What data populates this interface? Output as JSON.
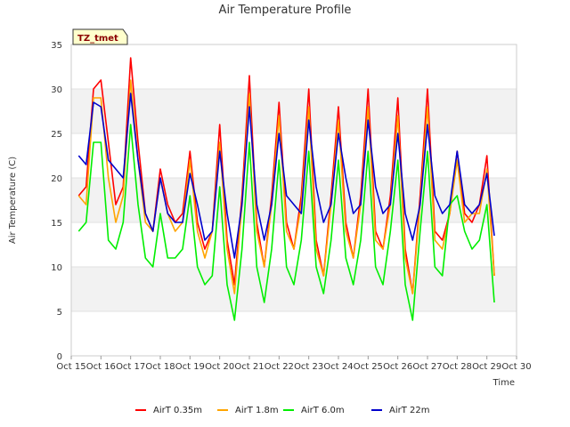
{
  "chart_data": {
    "type": "line",
    "title": "Air Temperature Profile",
    "xlabel": "Time",
    "ylabel": "Air Temperature (C)",
    "site_label": "TZ_tmet",
    "xlim": [
      15,
      30
    ],
    "ylim": [
      0,
      35
    ],
    "x_ticks": [
      15,
      16,
      17,
      18,
      19,
      20,
      21,
      22,
      23,
      24,
      25,
      26,
      27,
      28,
      29,
      30
    ],
    "x_tick_labels": [
      "Oct 15",
      "Oct 16",
      "Oct 17",
      "Oct 18",
      "Oct 19",
      "Oct 20",
      "Oct 21",
      "Oct 22",
      "Oct 23",
      "Oct 24",
      "Oct 25",
      "Oct 26",
      "Oct 27",
      "Oct 28",
      "Oct 29",
      "Oct 30"
    ],
    "y_ticks": [
      0,
      5,
      10,
      15,
      20,
      25,
      30,
      35
    ],
    "y_tick_labels": [
      "0",
      "5",
      "10",
      "15",
      "20",
      "25",
      "30",
      "35"
    ],
    "grid": true,
    "legend_position": "bottom",
    "series": [
      {
        "name": "AirT 0.35m",
        "color": "#ff0000",
        "x": [
          15.25,
          15.5,
          15.75,
          16.0,
          16.25,
          16.5,
          16.75,
          17.0,
          17.25,
          17.5,
          17.75,
          18.0,
          18.25,
          18.5,
          18.75,
          19.0,
          19.25,
          19.5,
          19.75,
          20.0,
          20.25,
          20.5,
          20.75,
          21.0,
          21.25,
          21.5,
          21.75,
          22.0,
          22.25,
          22.5,
          22.75,
          23.0,
          23.25,
          23.5,
          23.75,
          24.0,
          24.25,
          24.5,
          24.75,
          25.0,
          25.25,
          25.5,
          25.75,
          26.0,
          26.25,
          26.5,
          26.75,
          27.0,
          27.25,
          27.5,
          27.75,
          28.0,
          28.25,
          28.5,
          28.75,
          29.0,
          29.25
        ],
        "values": [
          18,
          19,
          30,
          31,
          24,
          17,
          19,
          33.5,
          24,
          16,
          14,
          21,
          17,
          15,
          16,
          23,
          15,
          12,
          14,
          26,
          13,
          8,
          18,
          31.5,
          15,
          10,
          18,
          28.5,
          15,
          12,
          18,
          30,
          13,
          9,
          18,
          28,
          15,
          11,
          18,
          30,
          14,
          12,
          18,
          29,
          12,
          7,
          18,
          30,
          14,
          13,
          16,
          23,
          16,
          15,
          17,
          22.5,
          9
        ]
      },
      {
        "name": "AirT 1.8m",
        "color": "#ffa500",
        "x": [
          15.25,
          15.5,
          15.75,
          16.0,
          16.25,
          16.5,
          16.75,
          17.0,
          17.25,
          17.5,
          17.75,
          18.0,
          18.25,
          18.5,
          18.75,
          19.0,
          19.25,
          19.5,
          19.75,
          20.0,
          20.25,
          20.5,
          20.75,
          21.0,
          21.25,
          21.5,
          21.75,
          22.0,
          22.25,
          22.5,
          22.75,
          23.0,
          23.25,
          23.5,
          23.75,
          24.0,
          24.25,
          24.5,
          24.75,
          25.0,
          25.25,
          25.5,
          25.75,
          26.0,
          26.25,
          26.5,
          26.75,
          27.0,
          27.25,
          27.5,
          27.75,
          28.0,
          28.25,
          28.5,
          28.75,
          29.0,
          29.25
        ],
        "values": [
          18,
          17,
          29,
          29,
          20,
          15,
          18,
          31,
          22,
          15,
          14,
          20,
          16,
          14,
          15,
          22,
          14,
          11,
          14,
          24,
          12,
          7,
          17,
          29.5,
          14,
          10,
          17,
          27,
          14,
          12,
          17,
          28,
          12,
          9,
          17,
          26.5,
          14,
          11,
          17,
          28,
          13,
          12,
          17,
          27,
          11,
          7,
          17,
          28,
          13,
          12,
          16,
          22,
          15,
          16,
          16,
          21,
          9
        ]
      },
      {
        "name": "AirT 6.0m",
        "color": "#00ee00",
        "x": [
          15.25,
          15.5,
          15.75,
          16.0,
          16.25,
          16.5,
          16.75,
          17.0,
          17.25,
          17.5,
          17.75,
          18.0,
          18.25,
          18.5,
          18.75,
          19.0,
          19.25,
          19.5,
          19.75,
          20.0,
          20.25,
          20.5,
          20.75,
          21.0,
          21.25,
          21.5,
          21.75,
          22.0,
          22.25,
          22.5,
          22.75,
          23.0,
          23.25,
          23.5,
          23.75,
          24.0,
          24.25,
          24.5,
          24.75,
          25.0,
          25.25,
          25.5,
          25.75,
          26.0,
          26.25,
          26.5,
          26.75,
          27.0,
          27.25,
          27.5,
          27.75,
          28.0,
          28.25,
          28.5,
          28.75,
          29.0,
          29.25
        ],
        "values": [
          14,
          15,
          24,
          24,
          13,
          12,
          15,
          26,
          17,
          11,
          10,
          16,
          11,
          11,
          12,
          18,
          10,
          8,
          9,
          19,
          8,
          4,
          12,
          24,
          10,
          6,
          12,
          22,
          10,
          8,
          13,
          23,
          10,
          7,
          13,
          22,
          11,
          8,
          13,
          23,
          10,
          8,
          14,
          22,
          8,
          4,
          14,
          23,
          10,
          9,
          17,
          18,
          14,
          12,
          13,
          17,
          6
        ]
      },
      {
        "name": "AirT 22m",
        "color": "#0000cc",
        "x": [
          15.25,
          15.5,
          15.75,
          16.0,
          16.25,
          16.5,
          16.75,
          17.0,
          17.25,
          17.5,
          17.75,
          18.0,
          18.25,
          18.5,
          18.75,
          19.0,
          19.25,
          19.5,
          19.75,
          20.0,
          20.25,
          20.5,
          20.75,
          21.0,
          21.25,
          21.5,
          21.75,
          22.0,
          22.25,
          22.5,
          22.75,
          23.0,
          23.25,
          23.5,
          23.75,
          24.0,
          24.25,
          24.5,
          24.75,
          25.0,
          25.25,
          25.5,
          25.75,
          26.0,
          26.25,
          26.5,
          26.75,
          27.0,
          27.25,
          27.5,
          27.75,
          28.0,
          28.25,
          28.5,
          28.75,
          29.0,
          29.25
        ],
        "values": [
          22.5,
          21.5,
          28.5,
          28,
          22,
          21,
          20,
          29.5,
          22,
          16,
          14,
          20,
          16,
          15,
          15,
          20.5,
          17,
          13,
          14,
          23,
          16,
          11,
          17,
          28,
          17,
          13,
          17,
          25,
          18,
          17,
          16,
          26.5,
          19,
          15,
          17,
          25,
          20,
          16,
          17,
          26.5,
          19,
          16,
          17,
          25,
          16,
          13,
          17,
          26,
          18,
          16,
          17,
          23,
          17,
          16,
          17,
          20.5,
          13.5
        ]
      }
    ]
  }
}
